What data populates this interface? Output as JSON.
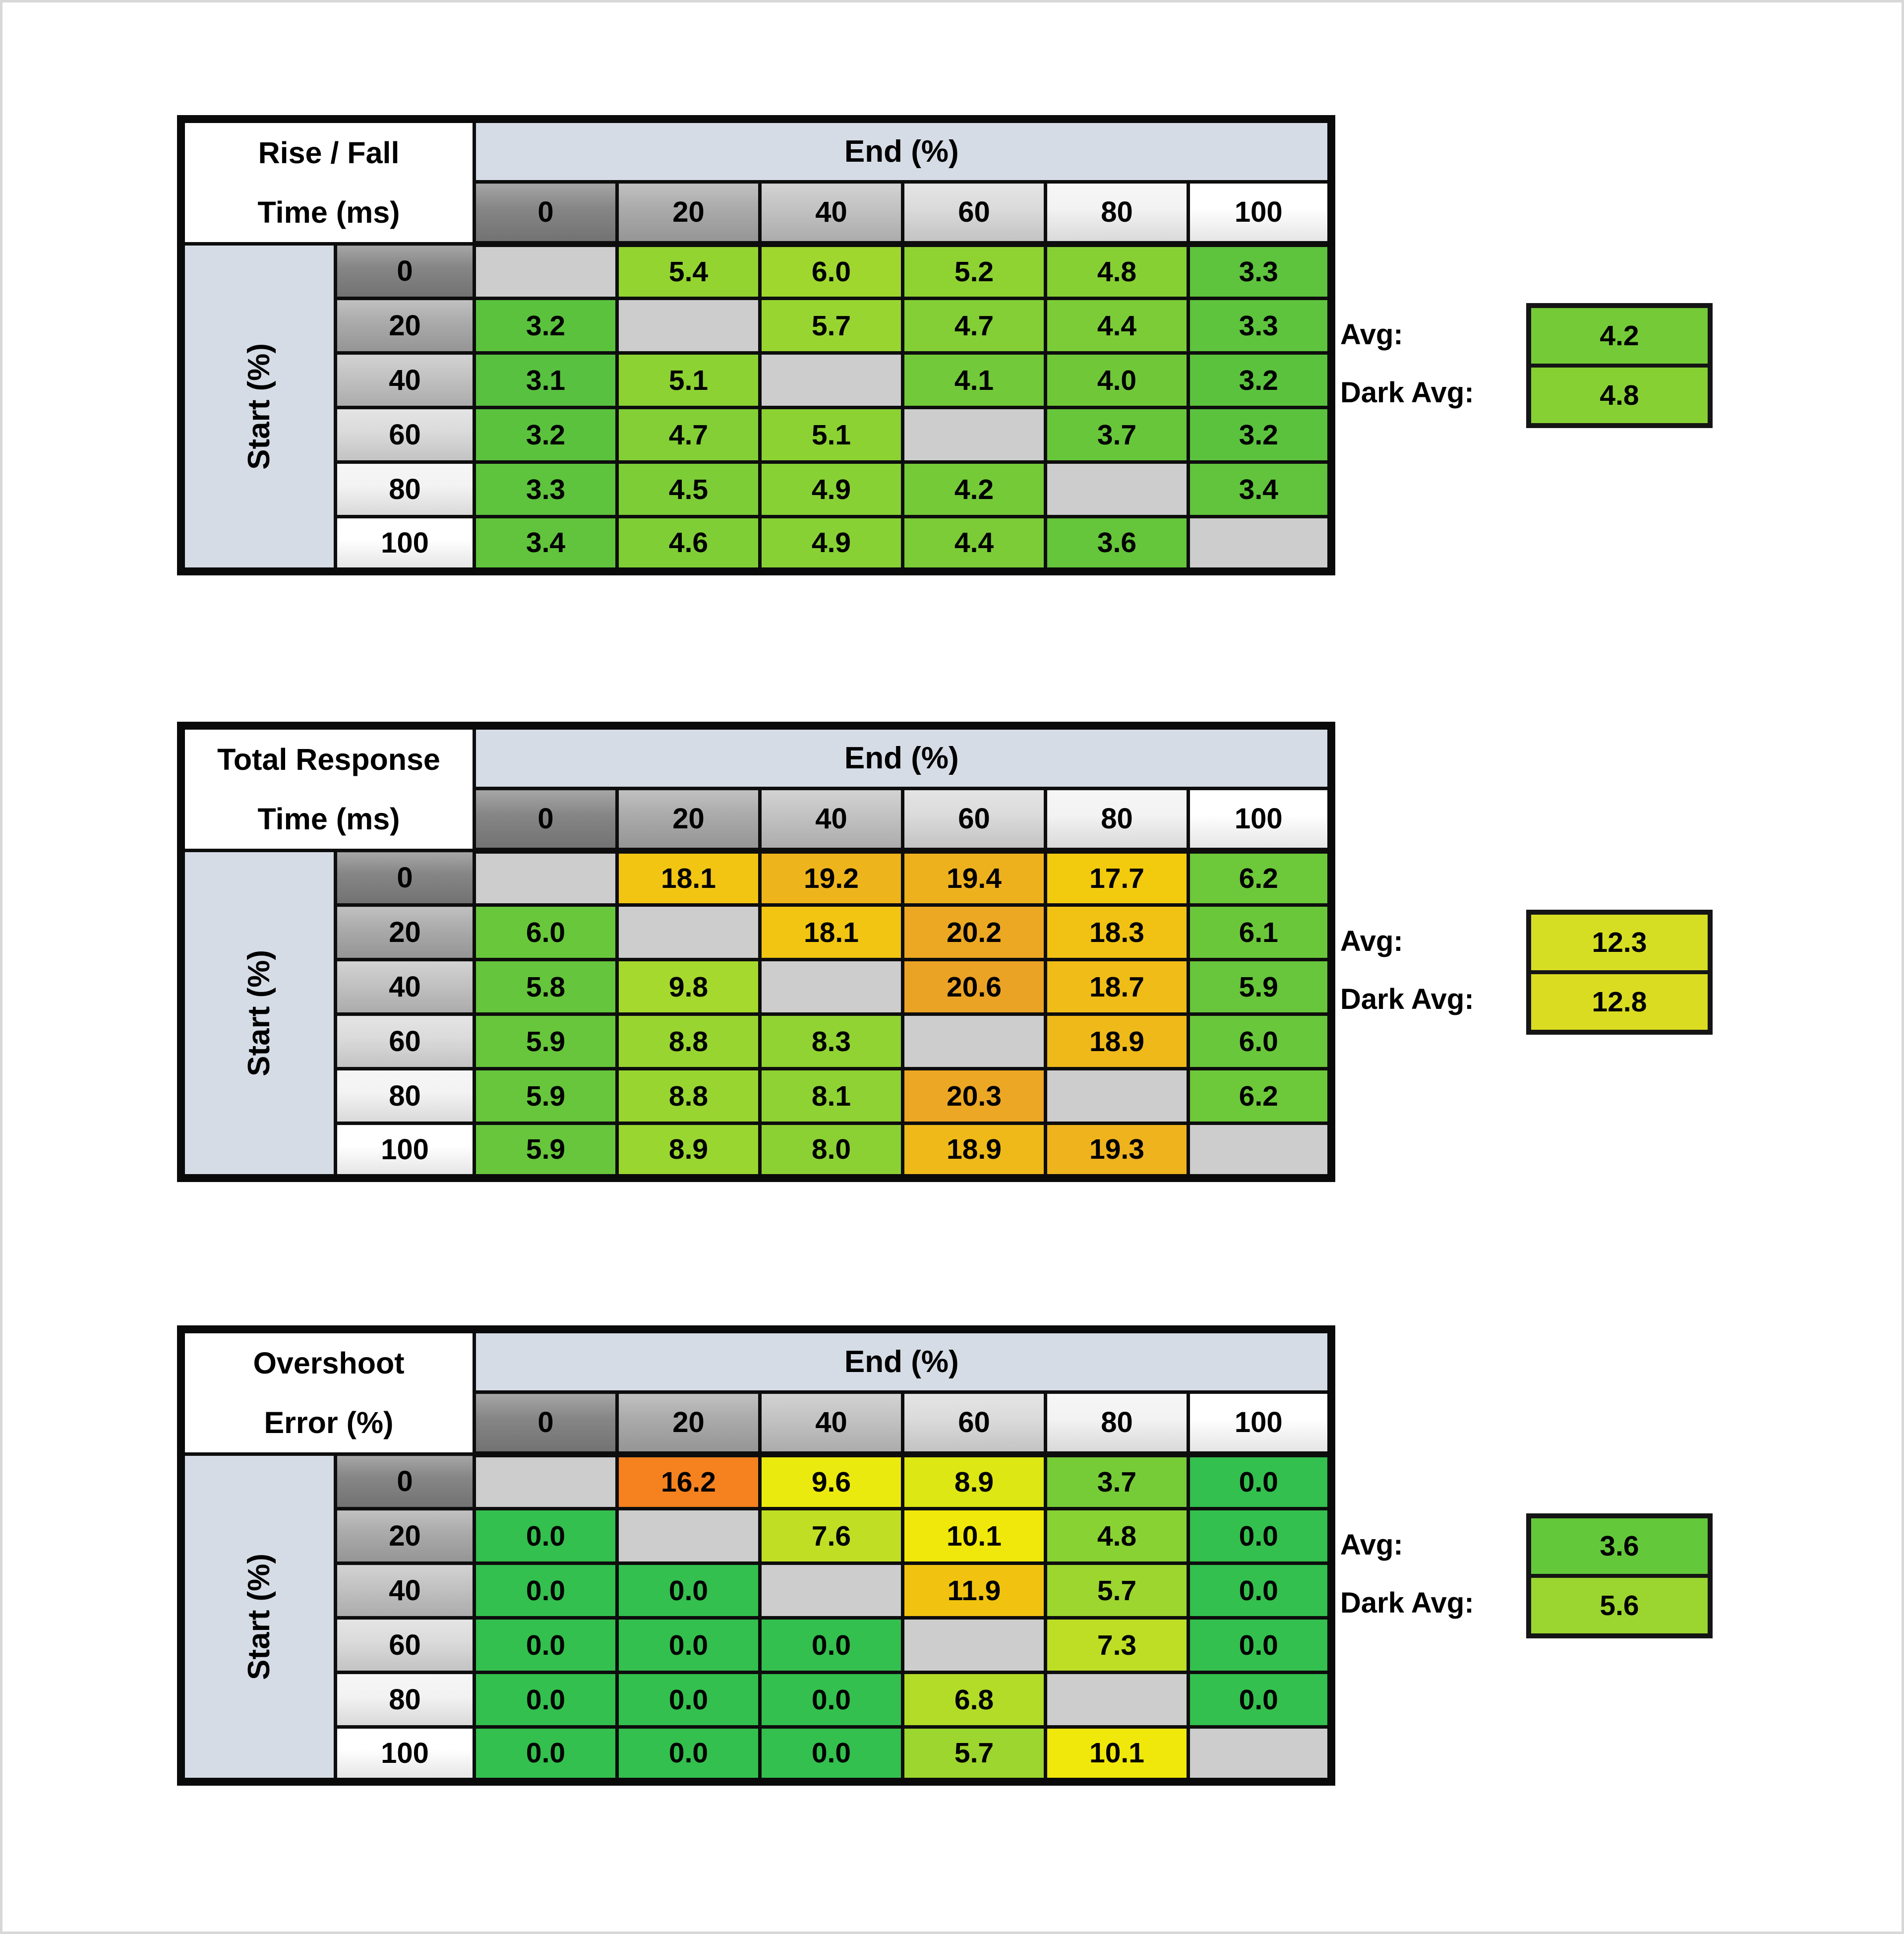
{
  "shared": {
    "end_header": "End (%)",
    "start_label": "Start (%)",
    "avg_label": "Avg:",
    "dark_avg_label": "Dark Avg:",
    "col_values": [
      "0",
      "20",
      "40",
      "60",
      "80",
      "100"
    ],
    "row_values": [
      "0",
      "20",
      "40",
      "60",
      "80",
      "100"
    ],
    "header_grays": [
      "#7F7F7F",
      "#A6A6A6",
      "#BFBFBF",
      "#D9D9D9",
      "#F2F2F2",
      "#FFFFFF"
    ],
    "band_color": "#D6DCE6",
    "blank_color": "#CDCDCD",
    "frame_color": "#D8D8D8"
  },
  "tables": [
    {
      "title_line1": "Rise / Fall",
      "title_line2": "Time (ms)",
      "avg": {
        "value": "4.2",
        "color": "#75CA38"
      },
      "dark_avg": {
        "value": "4.8",
        "color": "#86D034"
      },
      "cells": [
        [
          {
            "v": "",
            "c": ""
          },
          {
            "v": "5.4",
            "c": "#93D431"
          },
          {
            "v": "6.0",
            "c": "#9FD72F"
          },
          {
            "v": "5.2",
            "c": "#8FD332"
          },
          {
            "v": "4.8",
            "c": "#86D034"
          },
          {
            "v": "3.3",
            "c": "#5EC33D"
          }
        ],
        [
          {
            "v": "3.2",
            "c": "#5BC23E"
          },
          {
            "v": "",
            "c": ""
          },
          {
            "v": "5.7",
            "c": "#99D530"
          },
          {
            "v": "4.7",
            "c": "#83CF35"
          },
          {
            "v": "4.4",
            "c": "#7BCC37"
          },
          {
            "v": "3.3",
            "c": "#5EC33D"
          }
        ],
        [
          {
            "v": "3.1",
            "c": "#58C140"
          },
          {
            "v": "5.1",
            "c": "#8CD233"
          },
          {
            "v": "",
            "c": ""
          },
          {
            "v": "4.1",
            "c": "#72C939"
          },
          {
            "v": "4.0",
            "c": "#70C839"
          },
          {
            "v": "3.2",
            "c": "#5BC23E"
          }
        ],
        [
          {
            "v": "3.2",
            "c": "#5BC23E"
          },
          {
            "v": "4.7",
            "c": "#83CF35"
          },
          {
            "v": "5.1",
            "c": "#8CD233"
          },
          {
            "v": "",
            "c": ""
          },
          {
            "v": "3.7",
            "c": "#68C63B"
          },
          {
            "v": "3.2",
            "c": "#5BC23E"
          }
        ],
        [
          {
            "v": "3.3",
            "c": "#5EC33D"
          },
          {
            "v": "4.5",
            "c": "#7DCD36"
          },
          {
            "v": "4.9",
            "c": "#88D134"
          },
          {
            "v": "4.2",
            "c": "#75CA38"
          },
          {
            "v": "",
            "c": ""
          },
          {
            "v": "3.4",
            "c": "#61C43C"
          }
        ],
        [
          {
            "v": "3.4",
            "c": "#61C43C"
          },
          {
            "v": "4.6",
            "c": "#80CE35"
          },
          {
            "v": "4.9",
            "c": "#88D134"
          },
          {
            "v": "4.4",
            "c": "#7BCC37"
          },
          {
            "v": "3.6",
            "c": "#65C53B"
          },
          {
            "v": "",
            "c": ""
          }
        ]
      ]
    },
    {
      "title_line1": "Total Response",
      "title_line2": "Time (ms)",
      "avg": {
        "value": "12.3",
        "color": "#D6DE24"
      },
      "dark_avg": {
        "value": "12.8",
        "color": "#DADC22"
      },
      "cells": [
        [
          {
            "v": "",
            "c": ""
          },
          {
            "v": "18.1",
            "c": "#F1C512"
          },
          {
            "v": "19.2",
            "c": "#EEB41C"
          },
          {
            "v": "19.4",
            "c": "#EEB11E"
          },
          {
            "v": "17.7",
            "c": "#F2CB0E"
          },
          {
            "v": "6.2",
            "c": "#6DC83A"
          }
        ],
        [
          {
            "v": "6.0",
            "c": "#69C73B"
          },
          {
            "v": "",
            "c": ""
          },
          {
            "v": "18.1",
            "c": "#F1C512"
          },
          {
            "v": "20.2",
            "c": "#ECA823"
          },
          {
            "v": "18.3",
            "c": "#F1C214"
          },
          {
            "v": "6.1",
            "c": "#6BC73A"
          }
        ],
        [
          {
            "v": "5.8",
            "c": "#65C53C"
          },
          {
            "v": "9.8",
            "c": "#A6D92D"
          },
          {
            "v": "",
            "c": ""
          },
          {
            "v": "20.6",
            "c": "#EBA326"
          },
          {
            "v": "18.7",
            "c": "#F0BC17"
          },
          {
            "v": "5.9",
            "c": "#67C63B"
          }
        ],
        [
          {
            "v": "5.9",
            "c": "#67C63B"
          },
          {
            "v": "8.8",
            "c": "#99D530"
          },
          {
            "v": "8.3",
            "c": "#91D332"
          },
          {
            "v": "",
            "c": ""
          },
          {
            "v": "18.9",
            "c": "#EFB91A"
          },
          {
            "v": "6.0",
            "c": "#69C73B"
          }
        ],
        [
          {
            "v": "5.9",
            "c": "#67C63B"
          },
          {
            "v": "8.8",
            "c": "#99D530"
          },
          {
            "v": "8.1",
            "c": "#8ED233"
          },
          {
            "v": "20.3",
            "c": "#ECA724"
          },
          {
            "v": "",
            "c": ""
          },
          {
            "v": "6.2",
            "c": "#6DC83A"
          }
        ],
        [
          {
            "v": "5.9",
            "c": "#67C63B"
          },
          {
            "v": "8.9",
            "c": "#9AD630"
          },
          {
            "v": "8.0",
            "c": "#8CD133"
          },
          {
            "v": "18.9",
            "c": "#EFB91A"
          },
          {
            "v": "19.3",
            "c": "#EEB31D"
          },
          {
            "v": "",
            "c": ""
          }
        ]
      ]
    },
    {
      "title_line1": "Overshoot",
      "title_line2": "Error (%)",
      "avg": {
        "value": "3.6",
        "color": "#64C83B"
      },
      "dark_avg": {
        "value": "5.6",
        "color": "#9BD52F"
      },
      "cells": [
        [
          {
            "v": "",
            "c": ""
          },
          {
            "v": "16.2",
            "c": "#F5821F"
          },
          {
            "v": "9.6",
            "c": "#EBEA0E"
          },
          {
            "v": "8.9",
            "c": "#DDE713"
          },
          {
            "v": "3.7",
            "c": "#76CC37"
          },
          {
            "v": "0.0",
            "c": "#33C04E"
          }
        ],
        [
          {
            "v": "0.0",
            "c": "#33C04E"
          },
          {
            "v": "",
            "c": ""
          },
          {
            "v": "7.6",
            "c": "#C0DF24"
          },
          {
            "v": "10.1",
            "c": "#F0E80A"
          },
          {
            "v": "4.8",
            "c": "#89D233"
          },
          {
            "v": "0.0",
            "c": "#33C04E"
          }
        ],
        [
          {
            "v": "0.0",
            "c": "#33C04E"
          },
          {
            "v": "0.0",
            "c": "#33C04E"
          },
          {
            "v": "",
            "c": ""
          },
          {
            "v": "11.9",
            "c": "#F1C310"
          },
          {
            "v": "5.7",
            "c": "#9DD62E"
          },
          {
            "v": "0.0",
            "c": "#33C04E"
          }
        ],
        [
          {
            "v": "0.0",
            "c": "#33C04E"
          },
          {
            "v": "0.0",
            "c": "#33C04E"
          },
          {
            "v": "0.0",
            "c": "#33C04E"
          },
          {
            "v": "",
            "c": ""
          },
          {
            "v": "7.3",
            "c": "#BDDE25"
          },
          {
            "v": "0.0",
            "c": "#33C04E"
          }
        ],
        [
          {
            "v": "0.0",
            "c": "#33C04E"
          },
          {
            "v": "0.0",
            "c": "#33C04E"
          },
          {
            "v": "0.0",
            "c": "#33C04E"
          },
          {
            "v": "6.8",
            "c": "#B3DC28"
          },
          {
            "v": "",
            "c": ""
          },
          {
            "v": "0.0",
            "c": "#33C04E"
          }
        ],
        [
          {
            "v": "0.0",
            "c": "#33C04E"
          },
          {
            "v": "0.0",
            "c": "#33C04E"
          },
          {
            "v": "0.0",
            "c": "#33C04E"
          },
          {
            "v": "5.7",
            "c": "#9DD62E"
          },
          {
            "v": "10.1",
            "c": "#F0E80A"
          },
          {
            "v": "",
            "c": ""
          }
        ]
      ]
    }
  ],
  "chart_data": [
    {
      "type": "heatmap",
      "title": "Rise / Fall Time (ms)",
      "xlabel": "End (%)",
      "ylabel": "Start (%)",
      "x_categories": [
        0,
        20,
        40,
        60,
        80,
        100
      ],
      "y_categories": [
        0,
        20,
        40,
        60,
        80,
        100
      ],
      "values": [
        [
          null,
          5.4,
          6.0,
          5.2,
          4.8,
          3.3
        ],
        [
          3.2,
          null,
          5.7,
          4.7,
          4.4,
          3.3
        ],
        [
          3.1,
          5.1,
          null,
          4.1,
          4.0,
          3.2
        ],
        [
          3.2,
          4.7,
          5.1,
          null,
          3.7,
          3.2
        ],
        [
          3.3,
          4.5,
          4.9,
          4.2,
          null,
          3.4
        ],
        [
          3.4,
          4.6,
          4.9,
          4.4,
          3.6,
          null
        ]
      ],
      "avg": 4.2,
      "dark_avg": 4.8,
      "legend_position": "right"
    },
    {
      "type": "heatmap",
      "title": "Total Response Time (ms)",
      "xlabel": "End (%)",
      "ylabel": "Start (%)",
      "x_categories": [
        0,
        20,
        40,
        60,
        80,
        100
      ],
      "y_categories": [
        0,
        20,
        40,
        60,
        80,
        100
      ],
      "values": [
        [
          null,
          18.1,
          19.2,
          19.4,
          17.7,
          6.2
        ],
        [
          6.0,
          null,
          18.1,
          20.2,
          18.3,
          6.1
        ],
        [
          5.8,
          9.8,
          null,
          20.6,
          18.7,
          5.9
        ],
        [
          5.9,
          8.8,
          8.3,
          null,
          18.9,
          6.0
        ],
        [
          5.9,
          8.8,
          8.1,
          20.3,
          null,
          6.2
        ],
        [
          5.9,
          8.9,
          8.0,
          18.9,
          19.3,
          null
        ]
      ],
      "avg": 12.3,
      "dark_avg": 12.8,
      "legend_position": "right"
    },
    {
      "type": "heatmap",
      "title": "Overshoot Error (%)",
      "xlabel": "End (%)",
      "ylabel": "Start (%)",
      "x_categories": [
        0,
        20,
        40,
        60,
        80,
        100
      ],
      "y_categories": [
        0,
        20,
        40,
        60,
        80,
        100
      ],
      "values": [
        [
          null,
          16.2,
          9.6,
          8.9,
          3.7,
          0.0
        ],
        [
          0.0,
          null,
          7.6,
          10.1,
          4.8,
          0.0
        ],
        [
          0.0,
          0.0,
          null,
          11.9,
          5.7,
          0.0
        ],
        [
          0.0,
          0.0,
          0.0,
          null,
          7.3,
          0.0
        ],
        [
          0.0,
          0.0,
          0.0,
          6.8,
          null,
          0.0
        ],
        [
          0.0,
          0.0,
          0.0,
          5.7,
          10.1,
          null
        ]
      ],
      "avg": 3.6,
      "dark_avg": 5.6,
      "legend_position": "right"
    }
  ]
}
